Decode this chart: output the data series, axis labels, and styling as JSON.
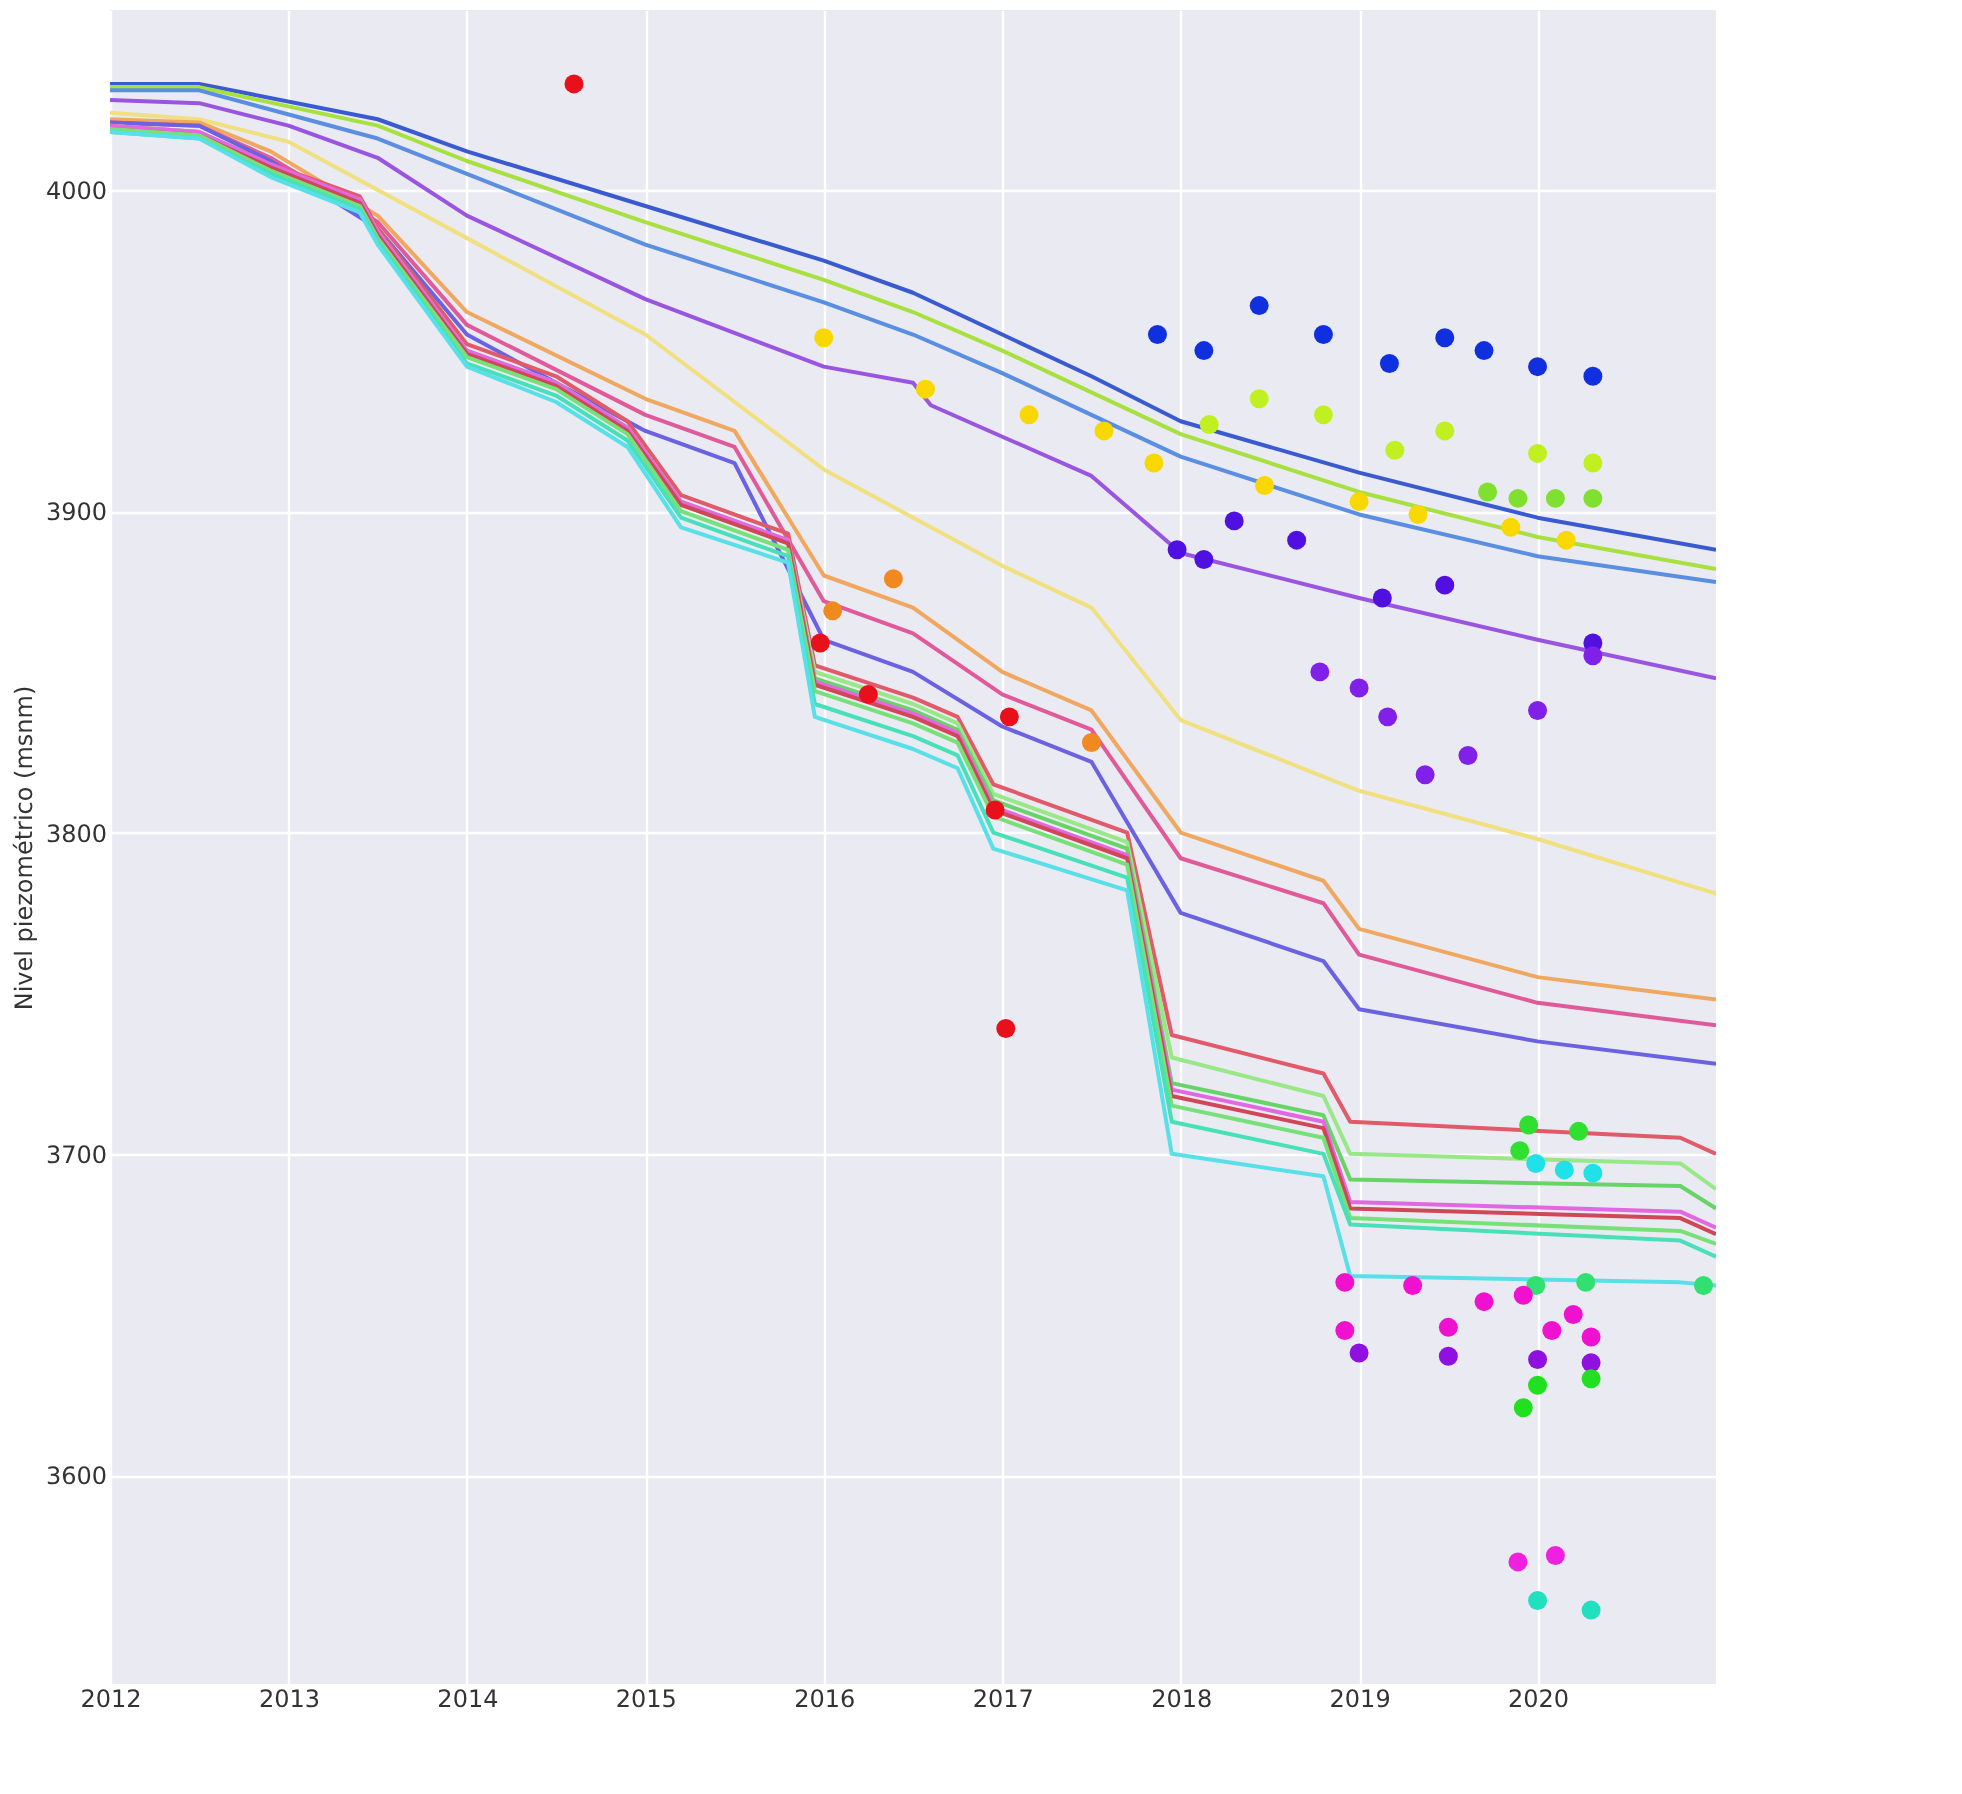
{
  "chart_data": {
    "type": "line",
    "ylabel": "Nivel piezométrico (msnm)",
    "xlim": [
      2012,
      2021
    ],
    "xticks": [
      2012,
      2013,
      2014,
      2015,
      2016,
      2017,
      2018,
      2019,
      2020
    ],
    "ylim": [
      3535,
      4056
    ],
    "yticks": [
      3600,
      3700,
      3800,
      3900,
      4000
    ],
    "grid": true,
    "series": [
      {
        "color": "#3a5ad0",
        "x": [
          2012,
          2012.5,
          2013.5,
          2014,
          2015,
          2016,
          2016.5,
          2017,
          2017.5,
          2018,
          2019,
          2020,
          2021
        ],
        "values": [
          4033,
          4033,
          4022,
          4012,
          3995,
          3978,
          3968,
          3955,
          3942,
          3928,
          3912,
          3898,
          3888
        ]
      },
      {
        "color": "#a8e040",
        "x": [
          2012,
          2012.5,
          2013.5,
          2014,
          2015,
          2016,
          2016.5,
          2017,
          2017.5,
          2018,
          2019,
          2020,
          2021
        ],
        "values": [
          4032,
          4032,
          4020,
          4009,
          3990,
          3972,
          3962,
          3950,
          3937,
          3924,
          3906,
          3892,
          3882
        ]
      },
      {
        "color": "#5a8ee0",
        "x": [
          2012,
          2012.5,
          2013.5,
          2014,
          2015,
          2016,
          2016.5,
          2017,
          2017.5,
          2018,
          2019,
          2020,
          2021
        ],
        "values": [
          4031,
          4031,
          4016,
          4005,
          3983,
          3965,
          3955,
          3943,
          3930,
          3917,
          3899,
          3886,
          3878
        ]
      },
      {
        "color": "#9a55e0",
        "x": [
          2012,
          2012.5,
          2013,
          2013.5,
          2014,
          2015,
          2016,
          2016.5,
          2016.6,
          2017.5,
          2018,
          2019,
          2020,
          2021
        ],
        "values": [
          4028,
          4027,
          4020,
          4010,
          3992,
          3966,
          3945,
          3940,
          3933,
          3911,
          3887,
          3873,
          3860,
          3848
        ]
      },
      {
        "color": "#f0e080",
        "x": [
          2012,
          2012.5,
          2013,
          2014,
          2015,
          2016,
          2017,
          2017.5,
          2018,
          2019,
          2020,
          2021
        ],
        "values": [
          4024,
          4022,
          4015,
          3985,
          3955,
          3913,
          3883,
          3870,
          3835,
          3813,
          3798,
          3781
        ]
      },
      {
        "color": "#f0a860",
        "x": [
          2012,
          2012.5,
          2012.9,
          2013.5,
          2014,
          2015,
          2015.5,
          2016,
          2016.5,
          2017,
          2017.5,
          2018,
          2018.8,
          2019,
          2020,
          2021
        ],
        "values": [
          4022,
          4021,
          4012,
          3992,
          3962,
          3935,
          3925,
          3880,
          3870,
          3850,
          3838,
          3800,
          3785,
          3770,
          3755,
          3748
        ]
      },
      {
        "color": "#e05a9a",
        "x": [
          2012,
          2012.5,
          2012.9,
          2013.5,
          2014,
          2015,
          2015.5,
          2016,
          2016.5,
          2017,
          2017.5,
          2018,
          2018.8,
          2019,
          2020,
          2021
        ],
        "values": [
          4021,
          4020,
          4010,
          3990,
          3958,
          3930,
          3920,
          3872,
          3862,
          3843,
          3832,
          3792,
          3778,
          3762,
          3747,
          3740
        ]
      },
      {
        "color": "#6a62e0",
        "x": [
          2012,
          2012.5,
          2012.9,
          2013.5,
          2014,
          2015,
          2015.5,
          2016,
          2016.5,
          2017,
          2017.5,
          2018,
          2018.8,
          2019,
          2020,
          2021
        ],
        "values": [
          4021,
          4020,
          4009,
          3988,
          3955,
          3925,
          3915,
          3860,
          3850,
          3833,
          3822,
          3775,
          3760,
          3745,
          3735,
          3728
        ]
      },
      {
        "color": "#e05a6a",
        "x": [
          2012,
          2012.5,
          2012.9,
          2013.4,
          2013.5,
          2014,
          2014.5,
          2014.9,
          2015.2,
          2015.8,
          2015.95,
          2016.5,
          2016.75,
          2016.95,
          2017.7,
          2017.95,
          2018.8,
          2018.95,
          2020.8,
          2021
        ],
        "values": [
          4020,
          4018,
          4008,
          3998,
          3988,
          3952,
          3942,
          3928,
          3905,
          3893,
          3852,
          3842,
          3836,
          3815,
          3800,
          3737,
          3725,
          3710,
          3705,
          3700
        ]
      },
      {
        "color": "#98e888",
        "x": [
          2012,
          2012.5,
          2012.9,
          2013.4,
          2013.5,
          2014,
          2014.5,
          2014.9,
          2015.2,
          2015.8,
          2015.95,
          2016.5,
          2016.75,
          2016.95,
          2017.7,
          2017.95,
          2018.8,
          2018.95,
          2020.8,
          2021
        ],
        "values": [
          4020,
          4018,
          4007,
          3997,
          3987,
          3950,
          3940,
          3926,
          3903,
          3891,
          3850,
          3840,
          3834,
          3812,
          3797,
          3730,
          3718,
          3700,
          3697,
          3689
        ]
      },
      {
        "color": "#68d468",
        "x": [
          2012,
          2012.5,
          2012.9,
          2013.4,
          2013.5,
          2014,
          2014.5,
          2014.9,
          2015.2,
          2015.8,
          2015.95,
          2016.5,
          2016.75,
          2016.95,
          2017.7,
          2017.95,
          2018.8,
          2018.95,
          2020.8,
          2021
        ],
        "values": [
          4019,
          4017,
          4006,
          3996,
          3986,
          3949,
          3939,
          3925,
          3902,
          3890,
          3848,
          3838,
          3832,
          3810,
          3795,
          3722,
          3712,
          3692,
          3690,
          3683
        ]
      },
      {
        "color": "#e068e0",
        "x": [
          2012,
          2012.5,
          2012.9,
          2013.4,
          2013.5,
          2014,
          2014.5,
          2014.9,
          2015.2,
          2015.8,
          2015.95,
          2016.5,
          2016.75,
          2016.95,
          2017.7,
          2017.95,
          2018.8,
          2018.95,
          2020.8,
          2021
        ],
        "values": [
          4020,
          4018,
          4008,
          3997,
          3987,
          3950,
          3940,
          3926,
          3903,
          3891,
          3847,
          3837,
          3831,
          3808,
          3793,
          3720,
          3710,
          3685,
          3682,
          3677
        ]
      },
      {
        "color": "#d04858",
        "x": [
          2012,
          2012.5,
          2012.9,
          2013.4,
          2013.5,
          2014,
          2014.5,
          2014.9,
          2015.2,
          2015.8,
          2015.95,
          2016.5,
          2016.75,
          2016.95,
          2017.7,
          2017.95,
          2018.8,
          2018.95,
          2020.8,
          2021
        ],
        "values": [
          4019,
          4017,
          4007,
          3996,
          3986,
          3949,
          3939,
          3925,
          3902,
          3890,
          3846,
          3836,
          3830,
          3807,
          3792,
          3718,
          3708,
          3683,
          3680,
          3675
        ]
      },
      {
        "color": "#78e078",
        "x": [
          2012,
          2012.5,
          2012.9,
          2013.4,
          2013.5,
          2014,
          2014.5,
          2014.9,
          2015.2,
          2015.8,
          2015.95,
          2016.5,
          2016.75,
          2016.95,
          2017.7,
          2017.95,
          2018.8,
          2018.95,
          2020.8,
          2021
        ],
        "values": [
          4019,
          4017,
          4006,
          3995,
          3985,
          3948,
          3938,
          3924,
          3900,
          3888,
          3844,
          3834,
          3828,
          3805,
          3790,
          3715,
          3705,
          3680,
          3676,
          3672
        ]
      },
      {
        "color": "#48e0b8",
        "x": [
          2012,
          2012.5,
          2012.9,
          2013.4,
          2013.5,
          2014,
          2014.5,
          2014.9,
          2015.2,
          2015.8,
          2015.95,
          2016.5,
          2016.75,
          2016.95,
          2017.7,
          2017.95,
          2018.8,
          2018.95,
          2020.8,
          2021
        ],
        "values": [
          4018,
          4016,
          4005,
          3994,
          3984,
          3946,
          3936,
          3922,
          3898,
          3886,
          3840,
          3830,
          3824,
          3800,
          3786,
          3710,
          3700,
          3678,
          3673,
          3668
        ]
      },
      {
        "color": "#58e0e8",
        "x": [
          2012,
          2012.5,
          2012.9,
          2013.4,
          2013.5,
          2014,
          2014.5,
          2014.9,
          2015.2,
          2015.8,
          2015.95,
          2016.5,
          2016.75,
          2016.95,
          2017.7,
          2017.95,
          2018.8,
          2018.95,
          2020.8,
          2021
        ],
        "values": [
          4018,
          4016,
          4004,
          3993,
          3983,
          3945,
          3934,
          3920,
          3895,
          3884,
          3836,
          3826,
          3820,
          3795,
          3782,
          3700,
          3693,
          3662,
          3660,
          3659
        ]
      },
      {
        "type": "scatter",
        "color": "#e8101a",
        "x": [
          2014.6,
          2015.98,
          2016.25,
          2016.96,
          2017.04,
          2017.02
        ],
        "values": [
          4033,
          3859,
          3843,
          3807,
          3836,
          3739
        ]
      },
      {
        "type": "scatter",
        "color": "#f08a20",
        "x": [
          2016.05,
          2016.39,
          2017.5
        ],
        "values": [
          3869,
          3879,
          3828
        ]
      },
      {
        "type": "scatter",
        "color": "#f8d800",
        "x": [
          2016.0,
          2016.57,
          2017.15,
          2017.57,
          2017.85,
          2018.47,
          2019.0,
          2019.33,
          2019.85,
          2020.16
        ],
        "values": [
          3954,
          3938,
          3930,
          3925,
          3915,
          3908,
          3903,
          3899,
          3895,
          3891
        ]
      },
      {
        "type": "scatter",
        "color": "#1030e0",
        "x": [
          2017.87,
          2018.13,
          2018.44,
          2018.8,
          2019.17,
          2019.48,
          2019.7,
          2020.0,
          2020.31
        ],
        "values": [
          3955,
          3950,
          3964,
          3955,
          3946,
          3954,
          3950,
          3945,
          3942
        ]
      },
      {
        "type": "scatter",
        "color": "#c0f020",
        "x": [
          2018.16,
          2018.44,
          2018.8,
          2019.2,
          2019.48,
          2020.0,
          2020.31
        ],
        "values": [
          3927,
          3935,
          3930,
          3919,
          3925,
          3918,
          3915
        ]
      },
      {
        "type": "scatter",
        "color": "#80e030",
        "x": [
          2019.72,
          2019.89,
          2020.1,
          2020.31
        ],
        "values": [
          3906,
          3904,
          3904,
          3904
        ]
      },
      {
        "type": "scatter",
        "color": "#5010e0",
        "x": [
          2017.98,
          2018.13,
          2018.3,
          2018.65,
          2019.13,
          2019.48,
          2020.31
        ],
        "values": [
          3888,
          3885,
          3897,
          3891,
          3873,
          3877,
          3859
        ]
      },
      {
        "type": "scatter",
        "color": "#8020e8",
        "x": [
          2018.78,
          2019.0,
          2019.16,
          2019.37,
          2019.61,
          2020.0,
          2020.31
        ],
        "values": [
          3850,
          3845,
          3836,
          3818,
          3824,
          3838,
          3855
        ]
      },
      {
        "type": "scatter",
        "color": "#30e030",
        "x": [
          2019.9,
          2019.95,
          2020.23
        ],
        "values": [
          3701,
          3709,
          3707
        ]
      },
      {
        "type": "scatter",
        "color": "#20e0e8",
        "x": [
          2019.99,
          2020.15,
          2020.31
        ],
        "values": [
          3697,
          3695,
          3694
        ]
      },
      {
        "type": "scatter",
        "color": "#30e070",
        "x": [
          2019.99,
          2020.27,
          2020.93
        ],
        "values": [
          3659,
          3660,
          3659
        ]
      },
      {
        "type": "scatter",
        "color": "#f010d0",
        "x": [
          2018.92,
          2019.3,
          2019.7,
          2019.92,
          2020.2,
          2018.92,
          2019.5,
          2020.08,
          2020.3
        ],
        "values": [
          3660,
          3659,
          3654,
          3656,
          3650,
          3645,
          3646,
          3645,
          3643
        ]
      },
      {
        "type": "scatter",
        "color": "#9010e0",
        "x": [
          2019.0,
          2019.5,
          2020.0,
          2020.3
        ],
        "values": [
          3638,
          3637,
          3636,
          3635
        ]
      },
      {
        "type": "scatter",
        "color": "#20e020",
        "x": [
          2019.92,
          2020.0,
          2020.3
        ],
        "values": [
          3621,
          3628,
          3630
        ]
      },
      {
        "type": "scatter",
        "color": "#f020e0",
        "x": [
          2019.89,
          2020.1
        ],
        "values": [
          3573,
          3575
        ]
      },
      {
        "type": "scatter",
        "color": "#20e0c0",
        "x": [
          2020.0,
          2020.3
        ],
        "values": [
          3561,
          3558
        ]
      }
    ]
  }
}
